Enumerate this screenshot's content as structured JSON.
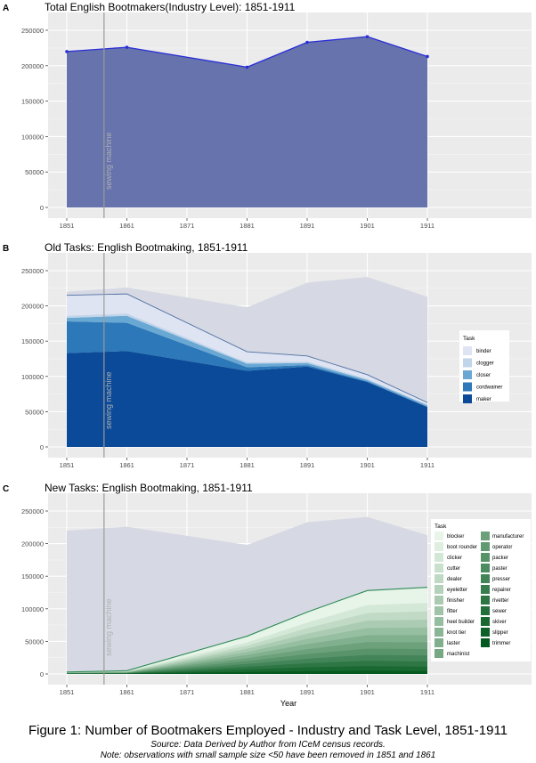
{
  "chart_data": [
    {
      "type": "area",
      "panel_letter": "A",
      "title": "Total English Bootmakers(Industry Level): 1851-1911",
      "x": [
        1851,
        1861,
        1881,
        1891,
        1901,
        1911
      ],
      "series": [
        {
          "name": "Total",
          "values": [
            220000,
            226000,
            198000,
            233000,
            241000,
            213000
          ]
        }
      ],
      "xticks": [
        "1851",
        "1861",
        "1871",
        "1881",
        "1891",
        "1901",
        "1911"
      ],
      "yticks": [
        "0",
        "50000",
        "100000",
        "150000",
        "200000",
        "250000"
      ],
      "ylim": [
        0,
        250000
      ],
      "annotation": "sewing machine",
      "colors": {
        "fill": "#6673ad",
        "line": "#2a2fd6",
        "panel_bg": "#ebebeb"
      }
    },
    {
      "type": "area",
      "panel_letter": "B",
      "title": "Old Tasks: English Bootmaking, 1851-1911",
      "x": [
        1851,
        1861,
        1881,
        1891,
        1901,
        1911
      ],
      "background_total": [
        220000,
        226000,
        198000,
        233000,
        241000,
        213000
      ],
      "legend_title": "Task",
      "series": [
        {
          "name": "binder",
          "values": [
            29000,
            28000,
            15000,
            8000,
            6000,
            3000
          ],
          "color": "#dfe4f3"
        },
        {
          "name": "clogger",
          "values": [
            3000,
            3000,
            2000,
            2000,
            1500,
            1000
          ],
          "color": "#c0d4ea"
        },
        {
          "name": "closer",
          "values": [
            5000,
            10000,
            5000,
            3000,
            2000,
            2000
          ],
          "color": "#6aa8d4"
        },
        {
          "name": "cordwainer",
          "values": [
            45000,
            40000,
            5000,
            2000,
            1000,
            500
          ],
          "color": "#2c78b8"
        },
        {
          "name": "maker",
          "values": [
            133000,
            136000,
            108000,
            114000,
            92000,
            56500
          ],
          "color": "#0a4a98"
        }
      ],
      "xticks": [
        "1851",
        "1861",
        "1871",
        "1881",
        "1891",
        "1901",
        "1911"
      ],
      "yticks": [
        "0",
        "50000",
        "100000",
        "150000",
        "200000",
        "250000"
      ],
      "ylim": [
        0,
        250000
      ],
      "annotation": "sewing machine"
    },
    {
      "type": "area",
      "panel_letter": "C",
      "title": "New Tasks: English Bootmaking, 1851-1911",
      "x": [
        1851,
        1861,
        1881,
        1891,
        1901,
        1911
      ],
      "background_total": [
        220000,
        226000,
        198000,
        233000,
        241000,
        213000
      ],
      "total_new": [
        3000,
        5000,
        58000,
        95000,
        128000,
        133000
      ],
      "legend_title": "Task",
      "tasks_col1": [
        "blocker",
        "boot rounder",
        "clicker",
        "cutter",
        "dealer",
        "eyeletter",
        "finisher",
        "fitter",
        "heel builder",
        "knot tier",
        "laster",
        "machinist"
      ],
      "tasks_col2": [
        "manufacturer",
        "operator",
        "packer",
        "paster",
        "presser",
        "repairer",
        "rivetter",
        "sewer",
        "skiver",
        "slipper",
        "trimmer"
      ],
      "xticks": [
        "1851",
        "1861",
        "1871",
        "1881",
        "1891",
        "1901",
        "1911"
      ],
      "yticks": [
        "0",
        "50000",
        "100000",
        "150000",
        "200000",
        "250000"
      ],
      "ylim": [
        0,
        250000
      ],
      "xlabel": "Year",
      "annotation": "sewing machine"
    }
  ],
  "caption": {
    "title": "Figure 1: Number of Bootmakers Employed - Industry and Task Level, 1851-1911",
    "source": "Source: Data Derived by Author from ICeM census records.",
    "note": "Note: observations with small sample size <50 have been removed in 1851 and 1861"
  }
}
